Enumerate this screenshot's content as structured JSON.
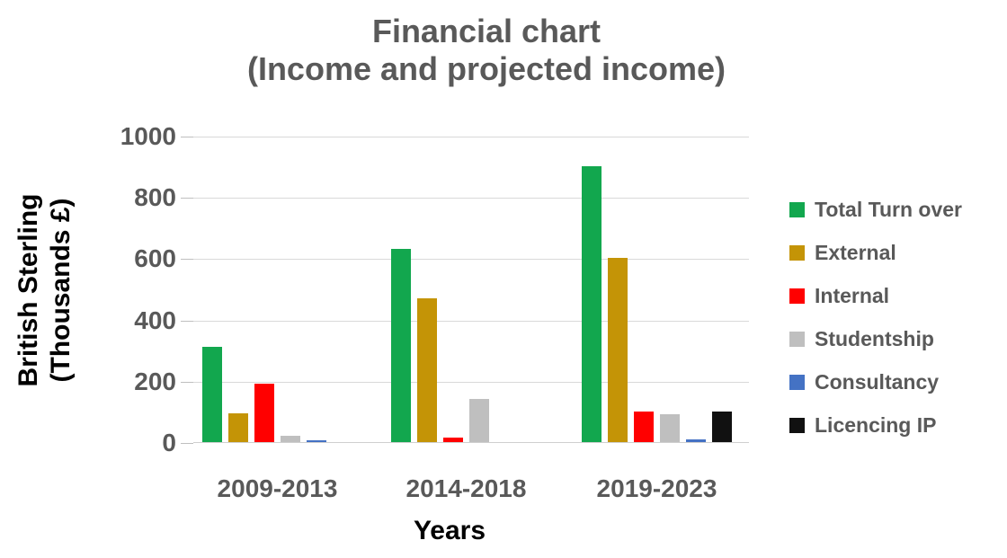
{
  "title": {
    "line1": "Financial chart",
    "line2": "(Income and projected income)"
  },
  "axes": {
    "y_label_line1": "British Sterling",
    "y_label_line2": "(Thousands £)",
    "x_label": "Years"
  },
  "colors": {
    "title_text": "#595959",
    "tick_text": "#595959",
    "axis_label_text": "#000000",
    "gridline": "#d9d9d9",
    "background": "#ffffff"
  },
  "chart_data": {
    "type": "bar",
    "title": "Financial chart (Income and projected income)",
    "xlabel": "Years",
    "ylabel": "British Sterling (Thousands £)",
    "categories": [
      "2009-2013",
      "2014-2018",
      "2019-2023"
    ],
    "series": [
      {
        "name": "Total Turn over",
        "color": "#12a74e",
        "values": [
          310,
          630,
          900
        ]
      },
      {
        "name": "External",
        "color": "#c49406",
        "values": [
          95,
          470,
          600
        ]
      },
      {
        "name": "Internal",
        "color": "#ff0000",
        "values": [
          190,
          15,
          100
        ]
      },
      {
        "name": "Studentship",
        "color": "#bfbfbf",
        "values": [
          20,
          140,
          90
        ]
      },
      {
        "name": "Consultancy",
        "color": "#4472c4",
        "values": [
          5,
          0,
          10
        ]
      },
      {
        "name": "Licencing IP",
        "color": "#111111",
        "values": [
          0,
          0,
          100
        ]
      }
    ],
    "ylim": [
      0,
      1000
    ],
    "yticks": [
      0,
      200,
      400,
      600,
      800,
      1000
    ],
    "grid": true,
    "legend_position": "right"
  }
}
